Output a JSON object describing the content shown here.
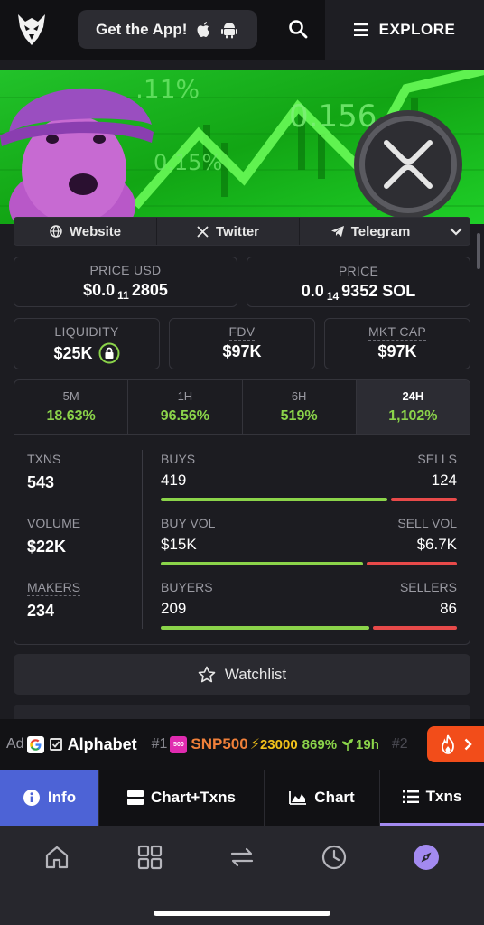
{
  "header": {
    "get_app_label": "Get the App!",
    "explore_label": "EXPLORE"
  },
  "links": {
    "website": "Website",
    "twitter": "Twitter",
    "telegram": "Telegram"
  },
  "price": {
    "usd_label": "PRICE USD",
    "usd_prefix": "$0.0",
    "usd_zeros": "11",
    "usd_digits": "2805",
    "native_label": "PRICE",
    "native_prefix": "0.0",
    "native_zeros": "14",
    "native_digits": "9352 SOL"
  },
  "metrics": {
    "liquidity_label": "LIQUIDITY",
    "liquidity_value": "$25K",
    "fdv_label": "FDV",
    "fdv_value": "$97K",
    "mktcap_label": "MKT CAP",
    "mktcap_value": "$97K"
  },
  "timeframes": [
    {
      "key": "5M",
      "value": "18.63%"
    },
    {
      "key": "1H",
      "value": "96.56%"
    },
    {
      "key": "6H",
      "value": "519%"
    },
    {
      "key": "24H",
      "value": "1,102%"
    }
  ],
  "stats": {
    "txns_label": "TXNS",
    "txns_value": "543",
    "volume_label": "VOLUME",
    "volume_value": "$22K",
    "makers_label": "MAKERS",
    "makers_value": "234",
    "buys_label": "BUYS",
    "buys_value": "419",
    "sells_label": "SELLS",
    "sells_value": "124",
    "buy_ratio": 0.77,
    "buyvol_label": "BUY VOL",
    "buyvol_value": "$15K",
    "sellvol_label": "SELL VOL",
    "sellvol_value": "$6.7K",
    "buyvol_ratio": 0.69,
    "buyers_label": "BUYERS",
    "buyers_value": "209",
    "sellers_label": "SELLERS",
    "sellers_value": "86",
    "buyers_ratio": 0.71
  },
  "watchlist_label": "Watchlist",
  "ticker": {
    "ad_label": "Ad",
    "ad_name": "Alphabet",
    "rank1": "#1",
    "badge_500": "500",
    "symbol1": "SNP500",
    "amount1": "23000",
    "pct1": "869%",
    "age1": "19h",
    "rank2": "#2"
  },
  "tabs": {
    "info": "Info",
    "chart_txns": "Chart+Txns",
    "chart": "Chart",
    "txns": "Txns"
  },
  "colors": {
    "green": "#8bd44a",
    "red": "#e84a4a",
    "info_tab": "#4d63d6",
    "hot": "#f24d1a"
  }
}
